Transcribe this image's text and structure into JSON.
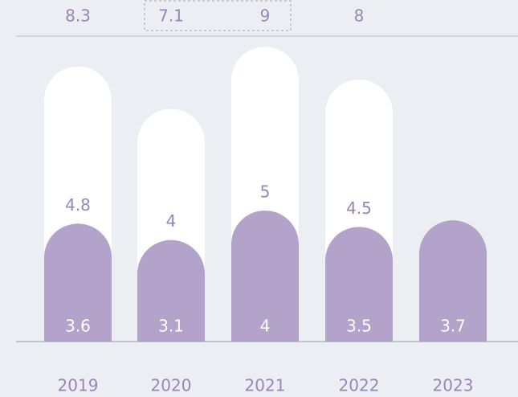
{
  "chart_data": {
    "type": "stacked_bar",
    "categories": [
      "2019",
      "2020",
      "2021",
      "2022",
      "2023"
    ],
    "series": [
      {
        "color": "#b3a2c9",
        "values": [
          3.6,
          3.1,
          4.0,
          3.5,
          3.7
        ]
      },
      {
        "color": "#ffffff",
        "values": [
          4.8,
          4.0,
          5.0,
          4.5,
          null
        ]
      }
    ],
    "totals": [
      8.3,
      7.1,
      9.0,
      8.0,
      null
    ],
    "ylim": [
      0,
      9.2
    ]
  }
}
